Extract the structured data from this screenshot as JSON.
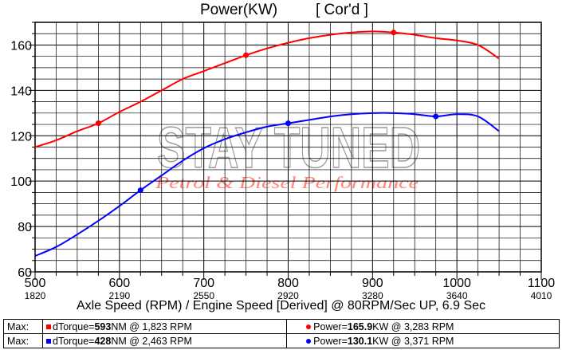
{
  "title": "Power(KW)",
  "title_note": "[ Cor'd ]",
  "watermark": {
    "line1": "STAY TUNED",
    "line2": "Petrol & Diesel Performance"
  },
  "xlabel": "Axle Speed (RPM) / Engine Speed [Derived] @ 80RPM/Sec UP, 6.9 Sec",
  "colors": {
    "red": "#ff0000",
    "blue": "#0000ff",
    "grid": "#000000"
  },
  "chart_data": {
    "type": "line",
    "title": "Power(KW)",
    "xlabel": "Axle Speed (RPM) / Engine Speed [Derived] @ 80RPM/Sec UP, 6.9 Sec",
    "ylabel": "",
    "xlim": [
      500,
      1100
    ],
    "ylim": [
      60,
      170
    ],
    "grid": true,
    "x_ticks": [
      "500",
      "600",
      "700",
      "800",
      "900",
      "1000",
      "1100"
    ],
    "x_tick_values": [
      500,
      600,
      700,
      800,
      900,
      1000,
      1100
    ],
    "engine_ticks": [
      "1820",
      "2190",
      "2550",
      "2920",
      "3280",
      "3640",
      "4010"
    ],
    "y_ticks": [
      "60",
      "80",
      "100",
      "120",
      "140",
      "160"
    ],
    "y_tick_values": [
      60,
      80,
      100,
      120,
      140,
      160
    ],
    "series": [
      {
        "color": "#ff0000",
        "x": [
          500,
          525,
          550,
          575,
          600,
          625,
          650,
          675,
          700,
          725,
          750,
          775,
          800,
          825,
          850,
          875,
          900,
          925,
          950,
          975,
          1000,
          1025,
          1050
        ],
        "values": [
          115,
          118,
          122,
          125.5,
          130.5,
          135,
          140,
          145,
          148.5,
          152,
          155.5,
          158.5,
          161,
          163,
          164.5,
          165.5,
          166,
          165.5,
          164.5,
          163,
          162,
          160,
          154
        ],
        "marker_x": [
          575,
          750,
          925
        ],
        "marker_y": [
          125.5,
          155.5,
          165.5
        ]
      },
      {
        "color": "#0000ff",
        "x": [
          500,
          525,
          550,
          575,
          600,
          625,
          650,
          675,
          700,
          725,
          750,
          775,
          800,
          825,
          850,
          875,
          900,
          925,
          950,
          975,
          1000,
          1025,
          1050
        ],
        "values": [
          67,
          71,
          76.5,
          82.5,
          89,
          96,
          102.5,
          109,
          114.5,
          118.5,
          121.5,
          124,
          125.5,
          127,
          128.5,
          129.5,
          130,
          130,
          129.5,
          128.5,
          129.5,
          128.5,
          122
        ],
        "marker_x": [
          625,
          800,
          975
        ],
        "marker_y": [
          96,
          125.5,
          128.5
        ]
      }
    ]
  },
  "summary": {
    "rows": [
      {
        "tag": "Max:",
        "torque_label": "dTorque=",
        "torque_value": "593",
        "torque_rest": "NM @ 1,823 RPM",
        "power_label": "Power=",
        "power_value": "165.9",
        "power_rest": "KW @ 3,283 RPM"
      },
      {
        "tag": "Max:",
        "torque_label": "dTorque=",
        "torque_value": "428",
        "torque_rest": "NM @ 2,463 RPM",
        "power_label": "Power=",
        "power_value": "130.1",
        "power_rest": "KW @ 3,371 RPM"
      }
    ]
  }
}
